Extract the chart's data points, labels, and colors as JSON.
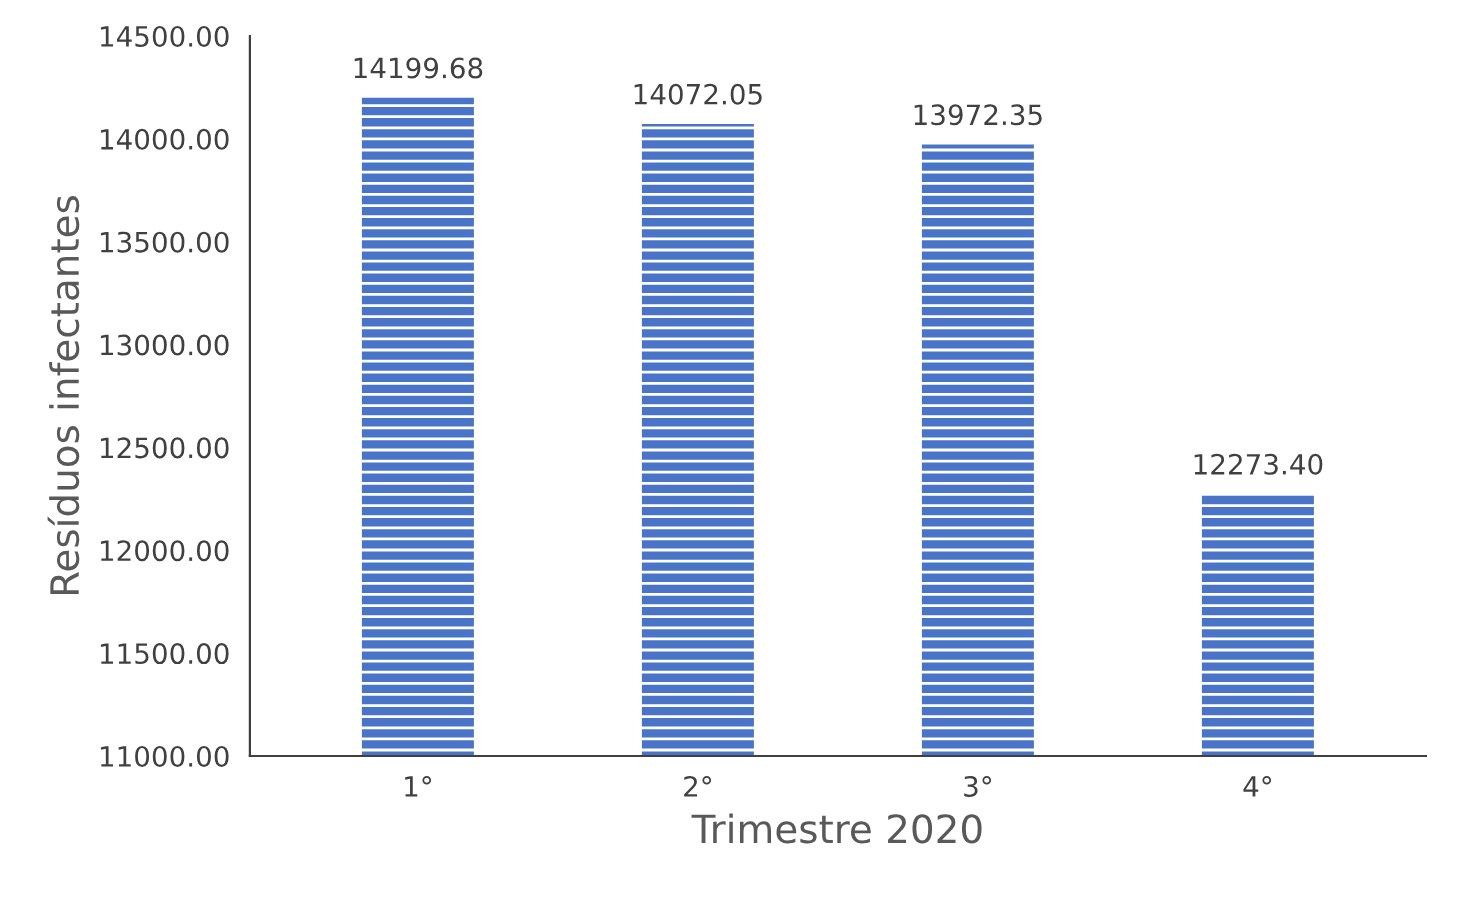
{
  "chart_data": {
    "type": "bar",
    "xlabel": "Trimestre 2020",
    "ylabel": "Resíduos infectantes",
    "categories": [
      "1°",
      "2°",
      "3°",
      "4°"
    ],
    "values": [
      14199.68,
      14072.05,
      13972.35,
      12273.4
    ],
    "value_labels": [
      "14199.68",
      "14072.05",
      "13972.35",
      "12273.40"
    ],
    "color": "#4a74c8",
    "ylim": [
      11000,
      14500
    ],
    "yticks": [
      {
        "value": 11000,
        "label": "11000.00"
      },
      {
        "value": 11500,
        "label": "11500.00"
      },
      {
        "value": 12000,
        "label": "12000.00"
      },
      {
        "value": 12500,
        "label": "12500.00"
      },
      {
        "value": 13000,
        "label": "13000.00"
      },
      {
        "value": 13500,
        "label": "13500.00"
      },
      {
        "value": 14000,
        "label": "14000.00"
      },
      {
        "value": 14500,
        "label": "14500.00"
      }
    ],
    "grid": false,
    "legend": false
  }
}
